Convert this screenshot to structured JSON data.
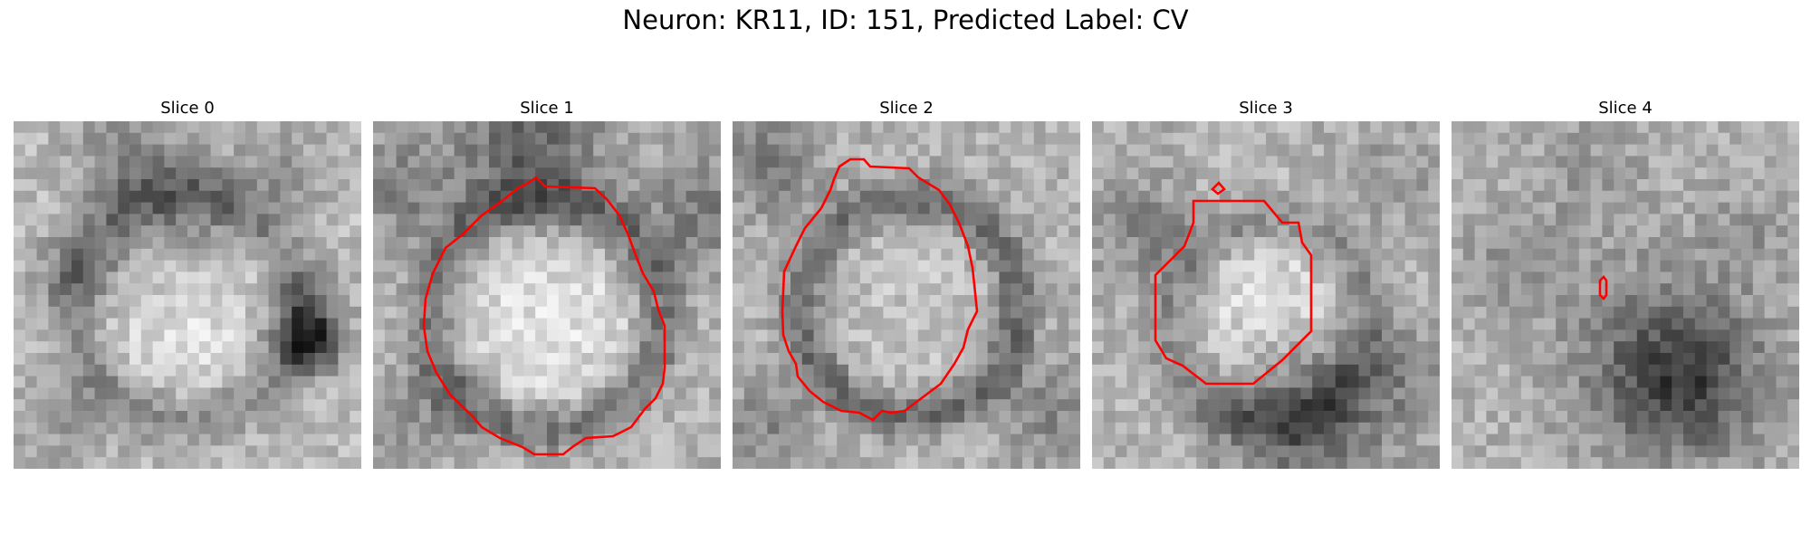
{
  "figure": {
    "title": "Neuron: KR11, ID: 151, Predicted Label: CV"
  },
  "colors": {
    "contour": "#ff0000",
    "background": "#ffffff"
  },
  "panels": [
    {
      "title": "Slice 0",
      "has_contour": false
    },
    {
      "title": "Slice 1",
      "has_contour": true
    },
    {
      "title": "Slice 2",
      "has_contour": true
    },
    {
      "title": "Slice 3",
      "has_contour": true,
      "has_small_marker": true
    },
    {
      "title": "Slice 4",
      "has_contour": true,
      "has_small_marker": false
    }
  ]
}
